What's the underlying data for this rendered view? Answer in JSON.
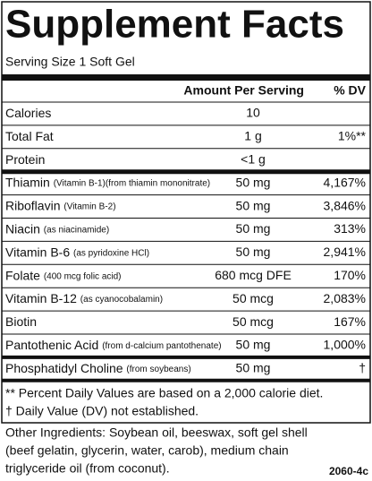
{
  "header": {
    "title": "Supplement Facts",
    "serving_size": "Serving Size 1 Soft Gel"
  },
  "table": {
    "columns": [
      "Amount Per Serving",
      "% DV"
    ],
    "rows": [
      {
        "name": "Calories",
        "amount": "10"
      },
      {
        "name": "Total Fat",
        "amount": "1 g",
        "dv": "1%**"
      },
      {
        "name": "Protein",
        "amount": "<1 g"
      },
      {
        "name": "Thiamin",
        "note": "(Vitamin B-1)(from thiamin mononitrate)",
        "amount": "50 mg",
        "dv": "4,167%"
      },
      {
        "name": "Riboflavin",
        "note": "(Vitamin B-2)",
        "amount": "50 mg",
        "dv": "3,846%"
      },
      {
        "name": "Niacin",
        "note": "(as niacinamide)",
        "amount": "50 mg",
        "dv": "313%"
      },
      {
        "name": "Vitamin B-6",
        "note": "(as pyridoxine HCl)",
        "amount": "50 mg",
        "dv": "2,941%"
      },
      {
        "name": "Folate",
        "note": "(400 mcg folic acid)",
        "amount": "680 mcg DFE",
        "dv": "170%"
      },
      {
        "name": "Vitamin B-12",
        "note": "(as cyanocobalamin)",
        "amount": "50 mcg",
        "dv": "2,083%"
      },
      {
        "name": "Biotin",
        "amount": "50 mcg",
        "dv": "167%"
      },
      {
        "name": "Pantothenic Acid",
        "note": "(from d-calcium pantothenate)",
        "amount": "50 mg",
        "dv": "1,000%"
      },
      {
        "name": "Phosphatidyl Choline",
        "note": "(from soybeans)",
        "amount": "50 mg",
        "dv": "†"
      }
    ]
  },
  "footnotes": [
    "** Percent Daily Values are based on a 2,000 calorie diet.",
    "† Daily Value (DV) not established."
  ],
  "other_ingredients": [
    "Other Ingredients: Soybean oil, beeswax, soft gel shell",
    "(beef gelatin, glycerin, water, carob), medium chain",
    "triglyceride oil (from coconut)."
  ],
  "code": "2060-4c"
}
